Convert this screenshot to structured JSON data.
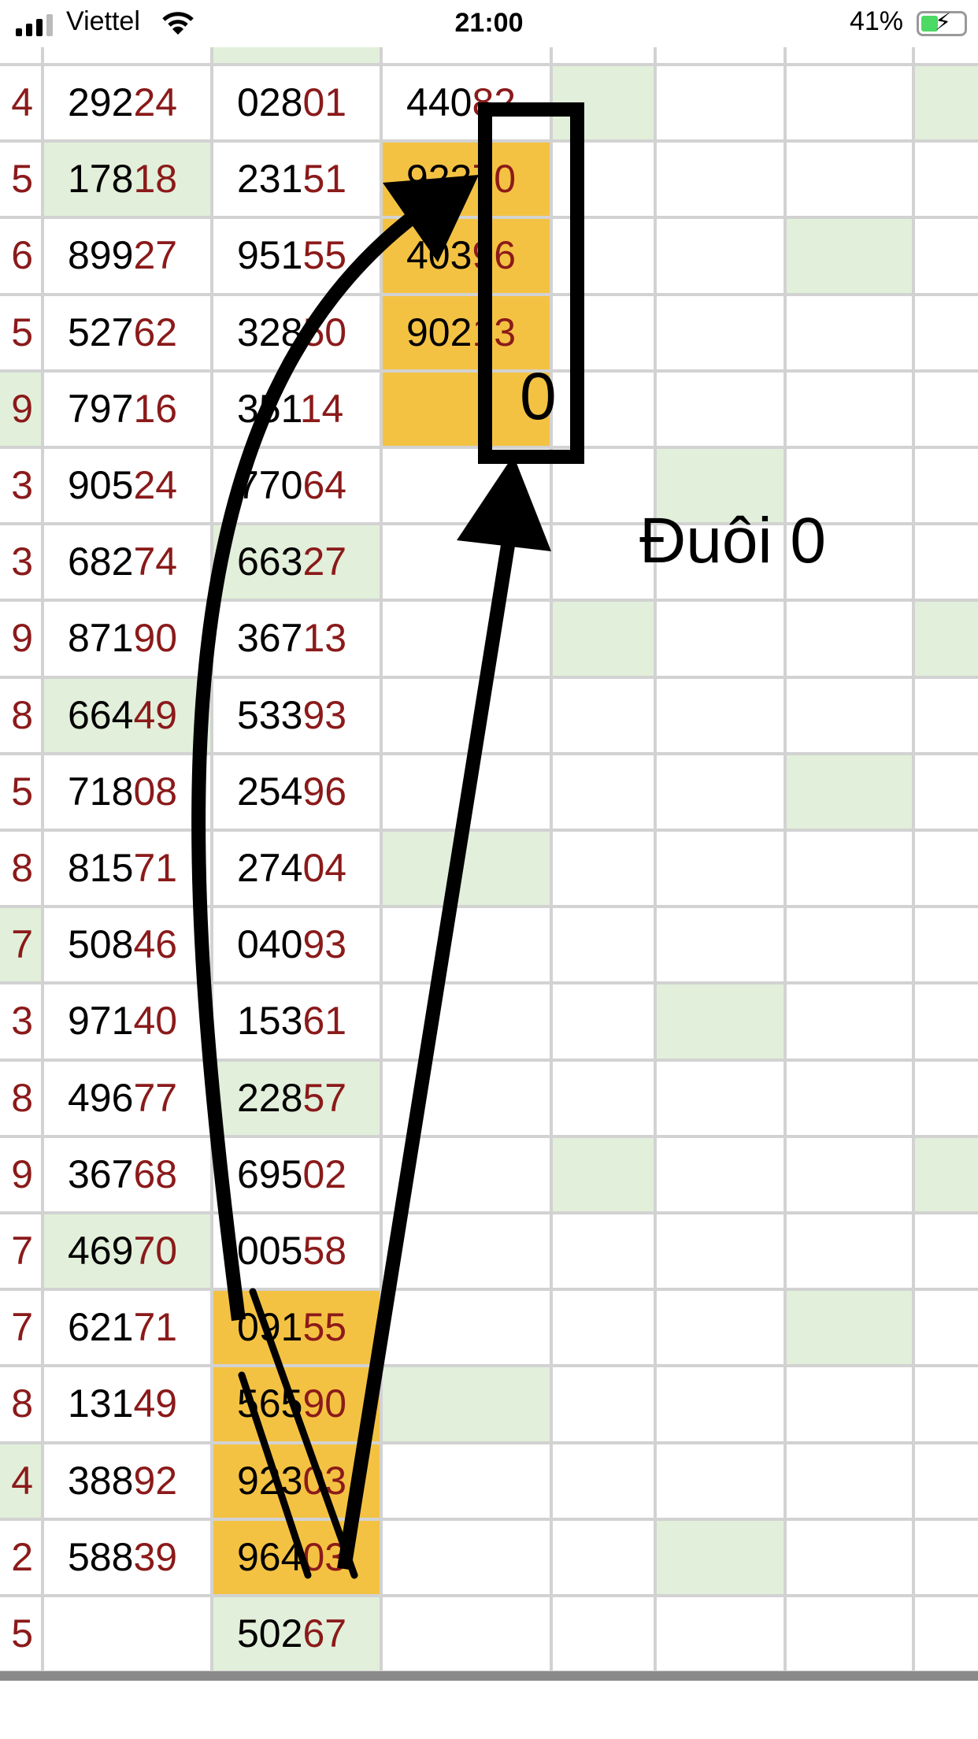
{
  "status_bar": {
    "carrier": "Viettel",
    "time": "21:00",
    "battery": "41%",
    "battery_level": 0.41,
    "icons": [
      "signal-icon",
      "wifi-icon",
      "battery-charging-icon"
    ]
  },
  "colors": {
    "green": "#e2efda",
    "orange": "#f4c242",
    "digit_red": "#8b1a1a"
  },
  "annotation": {
    "box_label": "0",
    "caption": "Đuôi 0"
  },
  "rows": [
    {
      "c": [
        "4",
        "29224",
        "02801",
        "44082"
      ],
      "green": [
        4,
        7
      ],
      "orange": []
    },
    {
      "c": [
        "5",
        "17818",
        "23151",
        "92370"
      ],
      "green": [
        1
      ],
      "orange": [
        3
      ]
    },
    {
      "c": [
        "6",
        "89927",
        "95155",
        "40396"
      ],
      "green": [
        6
      ],
      "orange": [
        3
      ]
    },
    {
      "c": [
        "5",
        "52762",
        "32850",
        "90213"
      ],
      "green": [],
      "orange": [
        3
      ]
    },
    {
      "c": [
        "9",
        "79716",
        "35114",
        ""
      ],
      "green": [
        0
      ],
      "orange": [
        3
      ]
    },
    {
      "c": [
        "3",
        "90524",
        "77064",
        ""
      ],
      "green": [
        5
      ],
      "orange": []
    },
    {
      "c": [
        "3",
        "68274",
        "66327",
        ""
      ],
      "green": [
        2
      ],
      "orange": []
    },
    {
      "c": [
        "9",
        "87190",
        "36713",
        ""
      ],
      "green": [
        4,
        7
      ],
      "orange": []
    },
    {
      "c": [
        "8",
        "66449",
        "53393",
        ""
      ],
      "green": [
        1
      ],
      "orange": []
    },
    {
      "c": [
        "5",
        "71808",
        "25496",
        ""
      ],
      "green": [
        6
      ],
      "orange": []
    },
    {
      "c": [
        "8",
        "81571",
        "27404",
        ""
      ],
      "green": [
        3
      ],
      "orange": []
    },
    {
      "c": [
        "7",
        "50846",
        "04093",
        ""
      ],
      "green": [
        0
      ],
      "orange": []
    },
    {
      "c": [
        "3",
        "97140",
        "15361",
        ""
      ],
      "green": [
        5
      ],
      "orange": []
    },
    {
      "c": [
        "8",
        "49677",
        "22857",
        ""
      ],
      "green": [
        2
      ],
      "orange": []
    },
    {
      "c": [
        "9",
        "36768",
        "69502",
        ""
      ],
      "green": [
        4,
        7
      ],
      "orange": []
    },
    {
      "c": [
        "7",
        "46970",
        "00558",
        ""
      ],
      "green": [
        1
      ],
      "orange": []
    },
    {
      "c": [
        "7",
        "62171",
        "09155",
        ""
      ],
      "green": [
        6
      ],
      "orange": [
        2
      ]
    },
    {
      "c": [
        "8",
        "13149",
        "56590",
        ""
      ],
      "green": [
        3
      ],
      "orange": [
        2
      ]
    },
    {
      "c": [
        "4",
        "38892",
        "92303",
        ""
      ],
      "green": [
        0
      ],
      "orange": [
        2
      ]
    },
    {
      "c": [
        "2",
        "58839",
        "96403",
        ""
      ],
      "green": [
        5
      ],
      "orange": [
        2
      ]
    },
    {
      "c": [
        "5",
        "",
        "50267",
        ""
      ],
      "green": [
        2
      ],
      "orange": []
    }
  ]
}
